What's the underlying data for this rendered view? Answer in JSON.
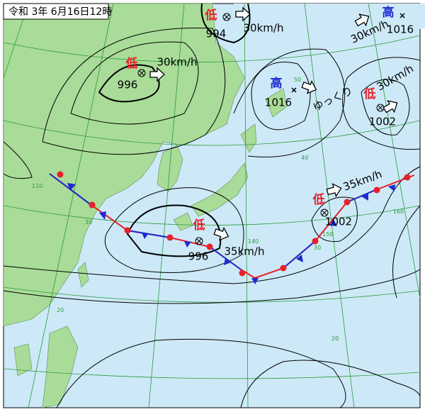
{
  "header": {
    "title": "令和 3年 6月16日12時"
  },
  "systems": [
    {
      "kind": "低",
      "pressure": 994,
      "motion": "30km/h"
    },
    {
      "kind": "低",
      "pressure": 996,
      "motion": "30km/h"
    },
    {
      "kind": "高",
      "pressure": 1016,
      "motion": "30km/h"
    },
    {
      "kind": "高",
      "pressure": 1016,
      "motion": "ゆっくり"
    },
    {
      "kind": "低",
      "pressure": 1002,
      "motion": "30km/h"
    },
    {
      "kind": "低",
      "pressure": 996,
      "motion": "35km/h"
    },
    {
      "kind": "低",
      "pressure": 1002,
      "motion": "35km/h"
    }
  ],
  "grid_labels": [
    "50",
    "40",
    "30",
    "20",
    "110",
    "140",
    "150",
    "160",
    "20",
    "30"
  ]
}
